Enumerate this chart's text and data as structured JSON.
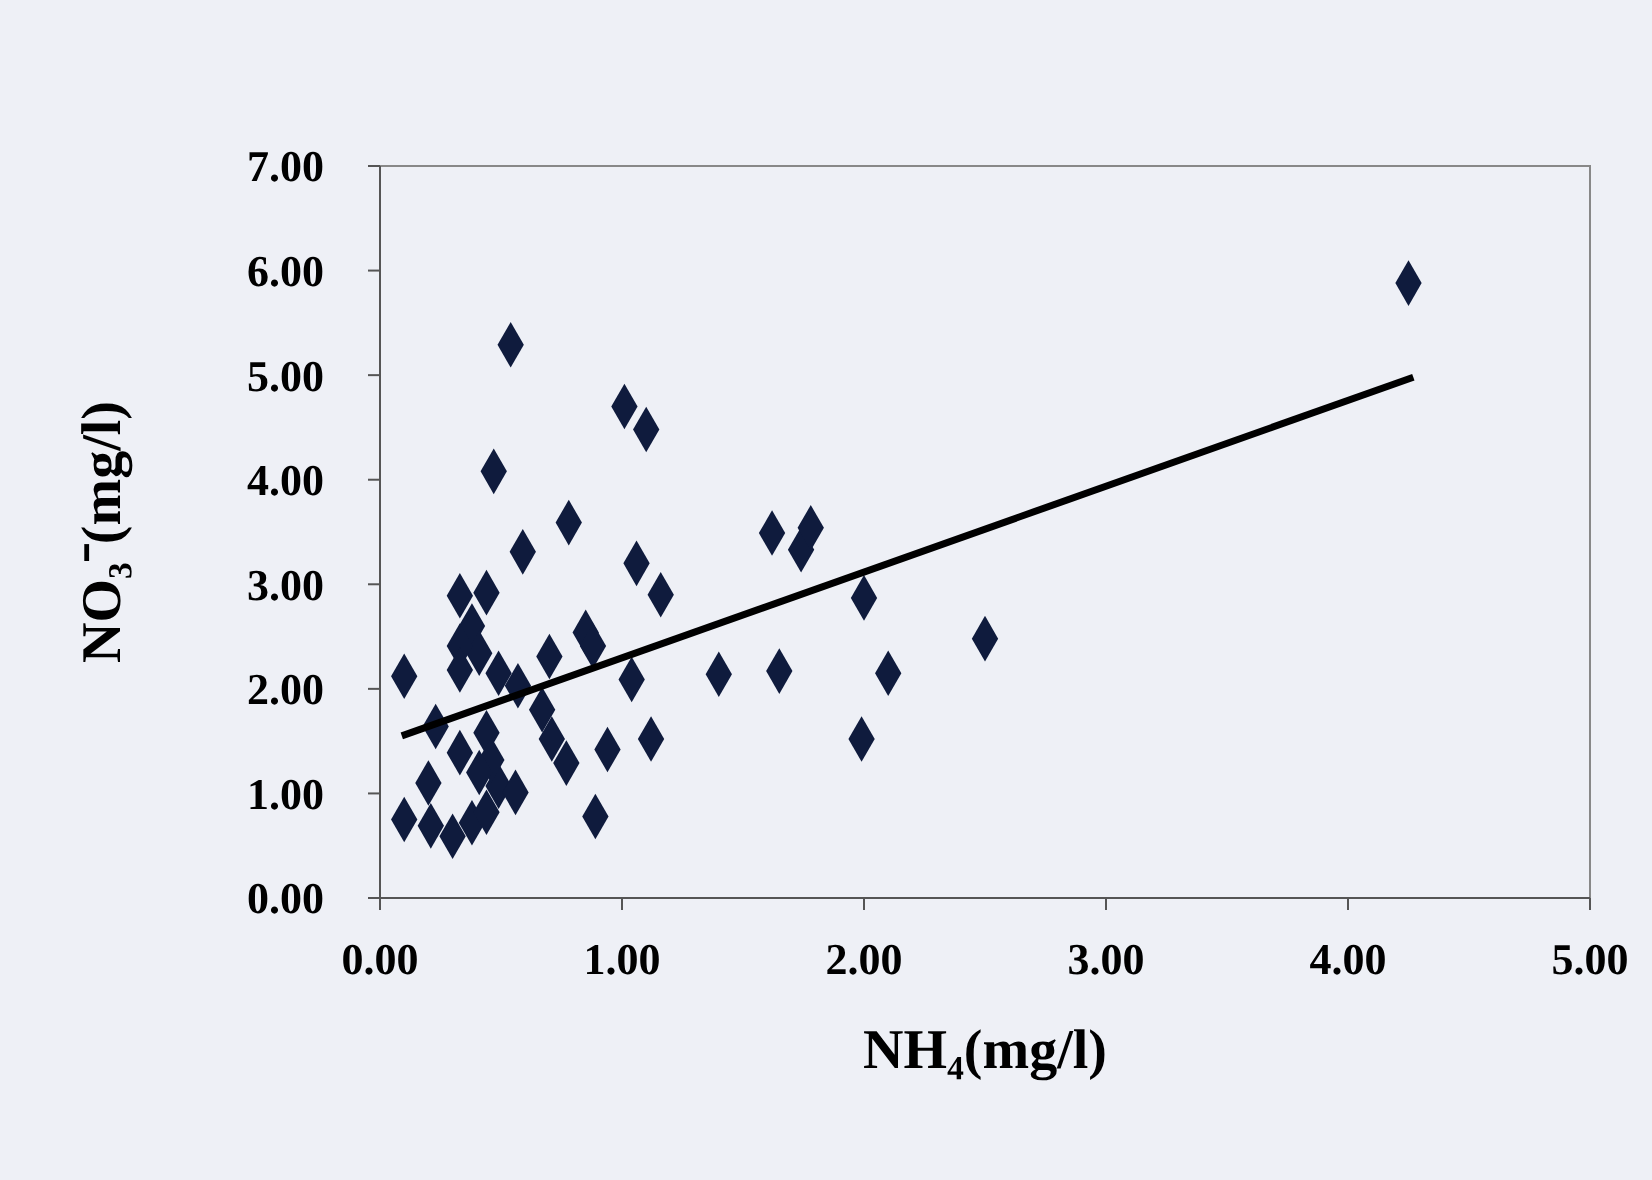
{
  "chart_data": {
    "type": "scatter",
    "xlabel": "NH₄(mg/l)",
    "ylabel": "NO₃⁻(mg/l)",
    "xlim": [
      0,
      5
    ],
    "ylim": [
      0,
      7
    ],
    "xticks": [
      {
        "value": 0,
        "label": "0.00"
      },
      {
        "value": 1,
        "label": "1.00"
      },
      {
        "value": 2,
        "label": "2.00"
      },
      {
        "value": 3,
        "label": "3.00"
      },
      {
        "value": 4,
        "label": "4.00"
      },
      {
        "value": 5,
        "label": "5.00"
      }
    ],
    "yticks": [
      {
        "value": 0,
        "label": "0.00"
      },
      {
        "value": 1,
        "label": "1.00"
      },
      {
        "value": 2,
        "label": "2.00"
      },
      {
        "value": 3,
        "label": "3.00"
      },
      {
        "value": 4,
        "label": "4.00"
      },
      {
        "value": 5,
        "label": "5.00"
      },
      {
        "value": 6,
        "label": "6.00"
      },
      {
        "value": 7,
        "label": "7.00"
      }
    ],
    "grid": false,
    "marker": "diamond",
    "series": [
      {
        "color": "#0f1b3d",
        "x": [
          0.54,
          1.01,
          1.1,
          0.47,
          0.78,
          0.59,
          1.06,
          1.16,
          1.62,
          1.74,
          1.78,
          2.0,
          0.1,
          0.33,
          0.44,
          0.38,
          0.41,
          0.33,
          0.33,
          0.49,
          0.57,
          0.7,
          0.85,
          0.88,
          1.04,
          1.4,
          1.65,
          2.1,
          0.23,
          0.67,
          0.71,
          0.77,
          0.94,
          1.12,
          1.99,
          0.2,
          0.1,
          0.21,
          0.3,
          0.38,
          0.44,
          0.49,
          0.56,
          0.44,
          0.46,
          0.41,
          0.33,
          0.89,
          4.25,
          2.5
        ],
        "values": [
          5.29,
          4.7,
          4.48,
          4.08,
          3.59,
          3.31,
          3.2,
          2.9,
          3.49,
          3.33,
          3.54,
          2.87,
          2.12,
          2.89,
          2.92,
          2.6,
          2.34,
          2.41,
          2.18,
          2.15,
          2.03,
          2.31,
          2.54,
          2.41,
          2.09,
          2.14,
          2.17,
          2.15,
          1.64,
          1.8,
          1.52,
          1.29,
          1.42,
          1.52,
          1.52,
          1.1,
          0.75,
          0.69,
          0.59,
          0.72,
          0.82,
          1.07,
          1.01,
          1.58,
          1.32,
          1.2,
          1.39,
          0.78,
          5.88,
          2.48
        ]
      },
      {
        "type": "line",
        "color": "#000000",
        "marker": "none",
        "line_style": "solid",
        "x": [
          0.09,
          4.27
        ],
        "values": [
          1.55,
          4.98
        ]
      }
    ]
  }
}
